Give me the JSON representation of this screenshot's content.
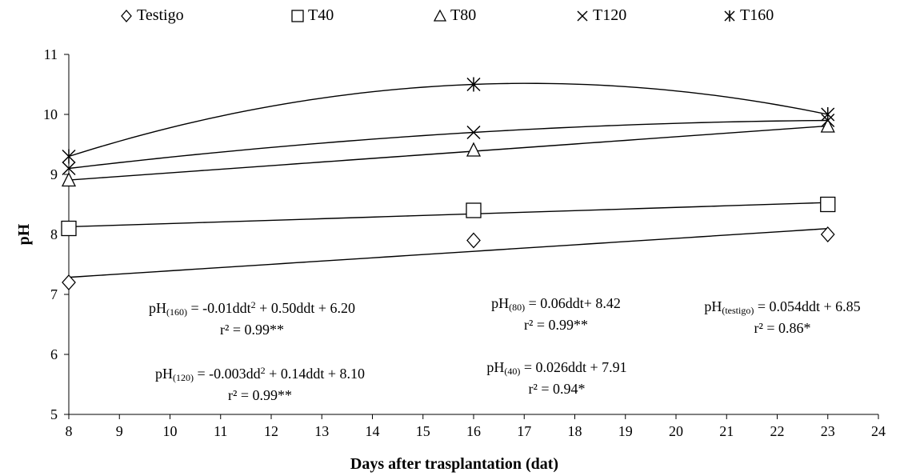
{
  "chart_data": {
    "type": "scatter",
    "xlabel": "Days after trasplantation (dat)",
    "ylabel": "pH",
    "xlim": [
      8,
      24
    ],
    "ylim": [
      5,
      11
    ],
    "x_ticks": [
      "8",
      "9",
      "10",
      "11",
      "12",
      "13",
      "14",
      "15",
      "16",
      "17",
      "18",
      "19",
      "20",
      "21",
      "22",
      "23",
      "24"
    ],
    "y_ticks": [
      "5",
      "6",
      "7",
      "8",
      "9",
      "10",
      "11"
    ],
    "grid": false,
    "legend_position": "top",
    "series": [
      {
        "name": "Testigo",
        "marker": "diamond",
        "x": [
          8,
          16,
          23
        ],
        "y": [
          7.2,
          7.9,
          8.0
        ],
        "trend": "linear"
      },
      {
        "name": "T40",
        "marker": "square",
        "x": [
          8,
          16,
          23
        ],
        "y": [
          8.1,
          8.4,
          8.5
        ],
        "trend": "linear"
      },
      {
        "name": "T80",
        "marker": "triangle",
        "x": [
          8,
          16,
          23
        ],
        "y": [
          8.9,
          9.4,
          9.8
        ],
        "trend": "linear"
      },
      {
        "name": "T120",
        "marker": "x",
        "x": [
          8,
          16,
          23
        ],
        "y": [
          9.1,
          9.7,
          9.9
        ],
        "trend": "quadratic"
      },
      {
        "name": "T160",
        "marker": "star",
        "x": [
          8,
          16,
          23
        ],
        "y": [
          9.3,
          10.5,
          10.0
        ],
        "trend": "quadratic"
      }
    ],
    "annotations": [
      {
        "id": "eq160",
        "pre": "pH",
        "sub": "(160)",
        "mid": " = -0.01ddt",
        "sup": "2",
        "post": " + 0.50ddt + 6.20",
        "r2": "r² = 0.99**"
      },
      {
        "id": "eq120",
        "pre": "pH",
        "sub": "(120)",
        "mid": " = -0.003dd",
        "sup": "2",
        "post": " + 0.14ddt + 8.10",
        "r2": "r² = 0.99**"
      },
      {
        "id": "eq80",
        "pre": "pH",
        "sub": "(80)",
        "mid": " = 0.06ddt+ 8.42",
        "sup": "",
        "post": "",
        "r2": "r² = 0.99**"
      },
      {
        "id": "eq40",
        "pre": "pH",
        "sub": "(40)",
        "mid": " = 0.026ddt + 7.91",
        "sup": "",
        "post": "",
        "r2": "r² = 0.94*"
      },
      {
        "id": "eqtestigo",
        "pre": "pH",
        "sub": "(testigo)",
        "mid": " = 0.054ddt + 6.85",
        "sup": "",
        "post": "",
        "r2": "r² = 0.86*"
      }
    ]
  }
}
